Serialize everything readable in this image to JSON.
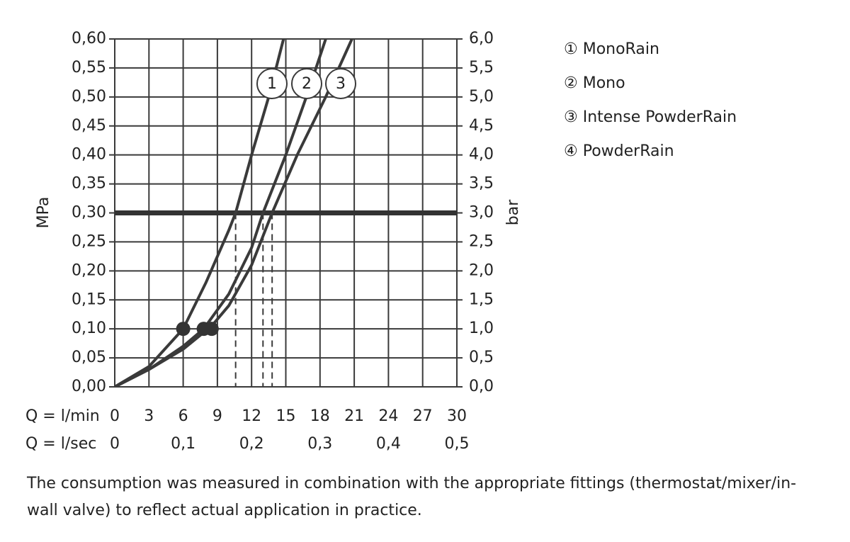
{
  "chart_data": {
    "type": "line",
    "y_label": "MPa",
    "y2_label": "bar",
    "x_label": "Q = l/min",
    "x2_label": "Q = l/sec",
    "xlim": [
      0,
      30
    ],
    "xticks": [
      0,
      3,
      6,
      9,
      12,
      15,
      18,
      21,
      24,
      27,
      30
    ],
    "x2lim": [
      0,
      0.5
    ],
    "x2ticks": [
      0,
      {
        "value": 0.1,
        "label": "0,1"
      },
      {
        "value": 0.2,
        "label": "0,2"
      },
      {
        "value": 0.3,
        "label": "0,3"
      },
      {
        "value": 0.4,
        "label": "0,4"
      },
      {
        "value": 0.5,
        "label": "0,5"
      }
    ],
    "ylim": [
      0,
      0.6
    ],
    "yticks": [
      {
        "value": 0,
        "label": "0,00"
      },
      {
        "value": 0.05,
        "label": "0,05"
      },
      {
        "value": 0.1,
        "label": "0,10"
      },
      {
        "value": 0.15,
        "label": "0,15"
      },
      {
        "value": 0.2,
        "label": "0,20"
      },
      {
        "value": 0.25,
        "label": "0,25"
      },
      {
        "value": 0.3,
        "label": "0,30"
      },
      {
        "value": 0.35,
        "label": "0,35"
      },
      {
        "value": 0.4,
        "label": "0,40"
      },
      {
        "value": 0.45,
        "label": "0,45"
      },
      {
        "value": 0.5,
        "label": "0,50"
      },
      {
        "value": 0.55,
        "label": "0,55"
      },
      {
        "value": 0.6,
        "label": "0,60"
      }
    ],
    "y2lim": [
      0,
      6
    ],
    "y2ticks": [
      {
        "value": 0,
        "label": "0,0"
      },
      {
        "value": 0.5,
        "label": "0,5"
      },
      {
        "value": 1,
        "label": "1,0"
      },
      {
        "value": 1.5,
        "label": "1,5"
      },
      {
        "value": 2,
        "label": "2,0"
      },
      {
        "value": 2.5,
        "label": "2,5"
      },
      {
        "value": 3,
        "label": "3,0"
      },
      {
        "value": 3.5,
        "label": "3,5"
      },
      {
        "value": 4,
        "label": "4,0"
      },
      {
        "value": 4.5,
        "label": "4,5"
      },
      {
        "value": 5,
        "label": "5,0"
      },
      {
        "value": 5.5,
        "label": "5,5"
      },
      {
        "value": 6,
        "label": "6,0"
      }
    ],
    "grid": true,
    "color": "#3a3a3a",
    "series": [
      {
        "label": "1",
        "x": [
          0,
          3,
          6,
          8,
          10,
          10.6,
          12,
          13.5,
          14.8
        ],
        "values": [
          0,
          0.035,
          0.1,
          0.18,
          0.27,
          0.3,
          0.4,
          0.5,
          0.6
        ]
      },
      {
        "label": "2",
        "x": [
          0,
          3,
          6,
          7.8,
          10,
          12,
          13,
          15,
          16.8,
          18.5
        ],
        "values": [
          0,
          0.03,
          0.07,
          0.1,
          0.16,
          0.24,
          0.3,
          0.4,
          0.5,
          0.6
        ]
      },
      {
        "label": "3",
        "x": [
          0,
          3,
          6,
          8.5,
          10,
          12,
          13.8,
          16,
          18.5,
          20.8
        ],
        "values": [
          0,
          0.03,
          0.065,
          0.105,
          0.14,
          0.21,
          0.3,
          0.4,
          0.5,
          0.6
        ]
      }
    ],
    "points": {
      "x": [
        6,
        7.8,
        8.5
      ],
      "values": [
        0.1,
        0.1,
        0.1
      ]
    },
    "hline": 0.3,
    "drop_lines": [
      10.6,
      13,
      13.8
    ],
    "legend": [
      "① MonoRain",
      "② Mono",
      "③ Intense PowderRain",
      "④ PowderRain"
    ],
    "note": "The consumption was measured in combination with the appropriate fittings (thermostat/mixer/in-wall valve) to reflect actual application in practice."
  }
}
